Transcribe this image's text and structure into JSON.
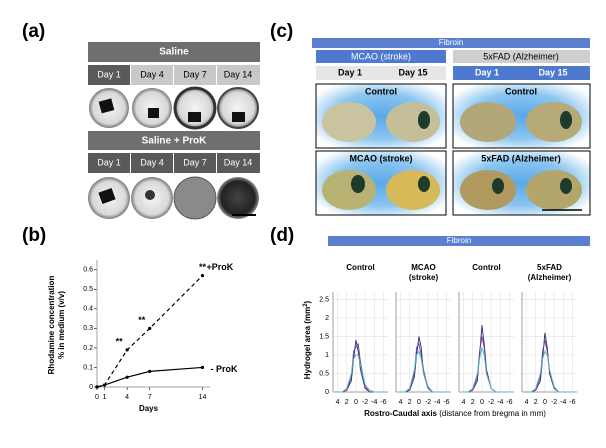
{
  "panel_labels": [
    "(a)",
    "(b)",
    "(c)",
    "(d)"
  ],
  "panel_a": {
    "groups": [
      {
        "title": "Saline",
        "days": [
          "Day 1",
          "Day 4",
          "Day 7",
          "Day 14"
        ]
      },
      {
        "title": "Saline + ProK",
        "days": [
          "Day 1",
          "Day 4",
          "Day 7",
          "Day 14"
        ]
      }
    ]
  },
  "panel_c": {
    "title": "Fibroin",
    "models": [
      {
        "name": "MCAO (stroke)",
        "days": [
          "Day 1",
          "Day 15"
        ],
        "rows": [
          "Control",
          "MCAO (stroke)"
        ]
      },
      {
        "name": "5xFAD (Alzheimer)",
        "days": [
          "Day 1",
          "Day 15"
        ],
        "rows": [
          "Control",
          "5xFAD (Alzheimer)"
        ]
      }
    ]
  },
  "panel_d": {
    "title": "Fibroin",
    "ylabel": "Hydrogel area (mm",
    "ylabel_sup": "2",
    "ylabel_end": ")",
    "xlabel_bold": "Rostro-Caudal axis",
    "xlabel_rest": "(distance from bregma in mm)"
  },
  "chart_data": [
    {
      "type": "line",
      "ylabel": [
        "Rhodamine concentration",
        "% in medium (v/v)"
      ],
      "xlabel": "Days",
      "x": [
        0,
        1,
        4,
        7,
        14
      ],
      "xlim": [
        0,
        15
      ],
      "xticks": [
        0,
        1,
        4,
        7,
        14
      ],
      "ylim": [
        0,
        0.65
      ],
      "yticks": [
        0,
        0.1,
        0.2,
        0.3,
        0.4,
        0.5,
        0.6
      ],
      "grid": false,
      "annotations": [
        "**",
        "**",
        "**"
      ],
      "series": [
        {
          "name": "+ProK",
          "color": "#000000",
          "style": "dashed",
          "values": [
            0,
            0.01,
            0.19,
            0.3,
            0.57
          ]
        },
        {
          "name": "- ProK",
          "color": "#000000",
          "style": "solid",
          "values": [
            0,
            0.01,
            0.05,
            0.08,
            0.1
          ]
        }
      ]
    },
    {
      "type": "line",
      "title": [
        "Control"
      ],
      "x": [
        4,
        3,
        2,
        1,
        0.5,
        0,
        -0.5,
        -1,
        -2,
        -3,
        -4,
        -6
      ],
      "xlim": [
        5,
        -7
      ],
      "xticks": [
        4,
        2,
        0,
        -2,
        -4,
        -6
      ],
      "ylim": [
        0,
        2.7
      ],
      "yticks": [
        0,
        0.5,
        1,
        1.5,
        2,
        2.5
      ],
      "grid": true,
      "series": [
        {
          "color": "#2a2a7a",
          "values": [
            0,
            0,
            0.05,
            0.3,
            0.9,
            1.4,
            1.1,
            0.6,
            0.1,
            0,
            0,
            0
          ]
        },
        {
          "color": "#7a3a8a",
          "values": [
            0,
            0,
            0.05,
            0.4,
            1.1,
            1.2,
            1.3,
            0.8,
            0.15,
            0,
            0,
            0
          ]
        },
        {
          "color": "#4ab8c8",
          "values": [
            0,
            0,
            0.1,
            0.5,
            0.9,
            1.0,
            1.0,
            0.7,
            0.2,
            0.05,
            0,
            0
          ]
        }
      ]
    },
    {
      "type": "line",
      "title": [
        "MCAO",
        "(stroke)"
      ],
      "x": [
        4,
        3,
        2,
        1,
        0.5,
        0,
        -0.5,
        -1,
        -2,
        -3,
        -4,
        -6
      ],
      "xlim": [
        5,
        -7
      ],
      "xticks": [
        4,
        2,
        0,
        -2,
        -4,
        -6
      ],
      "ylim": [
        0,
        2.7
      ],
      "yticks": [
        0,
        0.5,
        1,
        1.5,
        2,
        2.5
      ],
      "grid": true,
      "series": [
        {
          "color": "#2a2a7a",
          "values": [
            0,
            0,
            0.05,
            0.4,
            1.0,
            1.5,
            1.2,
            0.5,
            0.1,
            0,
            0,
            0
          ]
        },
        {
          "color": "#7a3a8a",
          "values": [
            0,
            0,
            0.1,
            0.5,
            1.2,
            1.3,
            1.0,
            0.6,
            0.1,
            0,
            0,
            0
          ]
        },
        {
          "color": "#4ab8c8",
          "values": [
            0,
            0,
            0.1,
            0.6,
            1.0,
            1.1,
            0.9,
            0.5,
            0.15,
            0,
            0,
            0
          ]
        }
      ]
    },
    {
      "type": "line",
      "title": [
        "Control"
      ],
      "x": [
        4,
        3,
        2,
        1,
        0.5,
        0,
        -0.5,
        -1,
        -2,
        -3,
        -4,
        -6
      ],
      "xlim": [
        5,
        -7
      ],
      "xticks": [
        4,
        2,
        0,
        -2,
        -4,
        -6
      ],
      "ylim": [
        0,
        2.7
      ],
      "yticks": [
        0,
        0.5,
        1,
        1.5,
        2,
        2.5
      ],
      "grid": true,
      "series": [
        {
          "color": "#2a2a7a",
          "values": [
            0,
            0,
            0.05,
            0.3,
            1.0,
            1.8,
            1.3,
            0.6,
            0.1,
            0,
            0,
            0
          ]
        },
        {
          "color": "#7a3a8a",
          "values": [
            0,
            0,
            0.05,
            0.4,
            1.1,
            1.5,
            1.2,
            0.5,
            0.1,
            0,
            0,
            0
          ]
        },
        {
          "color": "#4ab8c8",
          "values": [
            0,
            0,
            0.1,
            0.5,
            0.9,
            1.2,
            1.0,
            0.5,
            0.1,
            0,
            0,
            0
          ]
        }
      ]
    },
    {
      "type": "line",
      "title": [
        "5xFAD",
        "(Alzheimer)"
      ],
      "x": [
        4,
        3,
        2,
        1,
        0.5,
        0,
        -0.5,
        -1,
        -2,
        -3,
        -4,
        -6
      ],
      "xlim": [
        5,
        -7
      ],
      "xticks": [
        4,
        2,
        0,
        -2,
        -4,
        -6
      ],
      "ylim": [
        0,
        2.7
      ],
      "yticks": [
        0,
        0.5,
        1,
        1.5,
        2,
        2.5
      ],
      "grid": true,
      "series": [
        {
          "color": "#2a2a7a",
          "values": [
            0,
            0,
            0.05,
            0.3,
            0.9,
            1.6,
            1.2,
            0.5,
            0.1,
            0,
            0,
            0
          ]
        },
        {
          "color": "#7a3a8a",
          "values": [
            0,
            0,
            0.05,
            0.4,
            1.1,
            1.4,
            1.1,
            0.6,
            0.1,
            0,
            0,
            0
          ]
        },
        {
          "color": "#4ab8c8",
          "values": [
            0,
            0,
            0.1,
            0.5,
            0.9,
            1.1,
            1.0,
            0.6,
            0.15,
            0,
            0,
            0
          ]
        }
      ]
    }
  ]
}
